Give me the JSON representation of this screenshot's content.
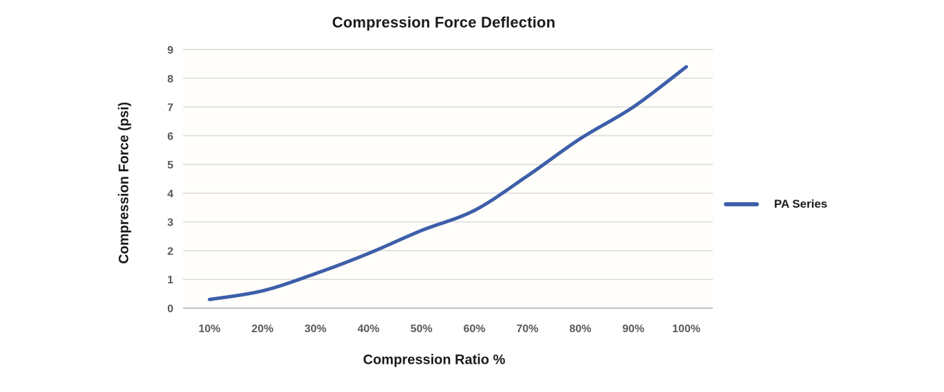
{
  "chart_data": {
    "type": "line",
    "title": "Compression Force Deflection",
    "xlabel": "Compression Ratio %",
    "ylabel": "Compression Force  (psi)",
    "categories": [
      "10%",
      "20%",
      "30%",
      "40%",
      "50%",
      "60%",
      "70%",
      "80%",
      "90%",
      "100%"
    ],
    "series": [
      {
        "name": "PA Series",
        "color": "#3d5fa9",
        "values": [
          0.3,
          0.6,
          1.2,
          1.9,
          2.7,
          3.4,
          4.6,
          5.9,
          7.0,
          8.4
        ]
      }
    ],
    "ylim": [
      0,
      9
    ],
    "ytick_interval": 1,
    "grid": true,
    "legend_position": "right",
    "colors": {
      "gridline": "#d9d9d9",
      "axis_line": "#c0c0c0",
      "tick_label": "#595959",
      "title": "#1a1a1a",
      "background": "#ffffff",
      "plot_background": "#fffefa"
    }
  }
}
